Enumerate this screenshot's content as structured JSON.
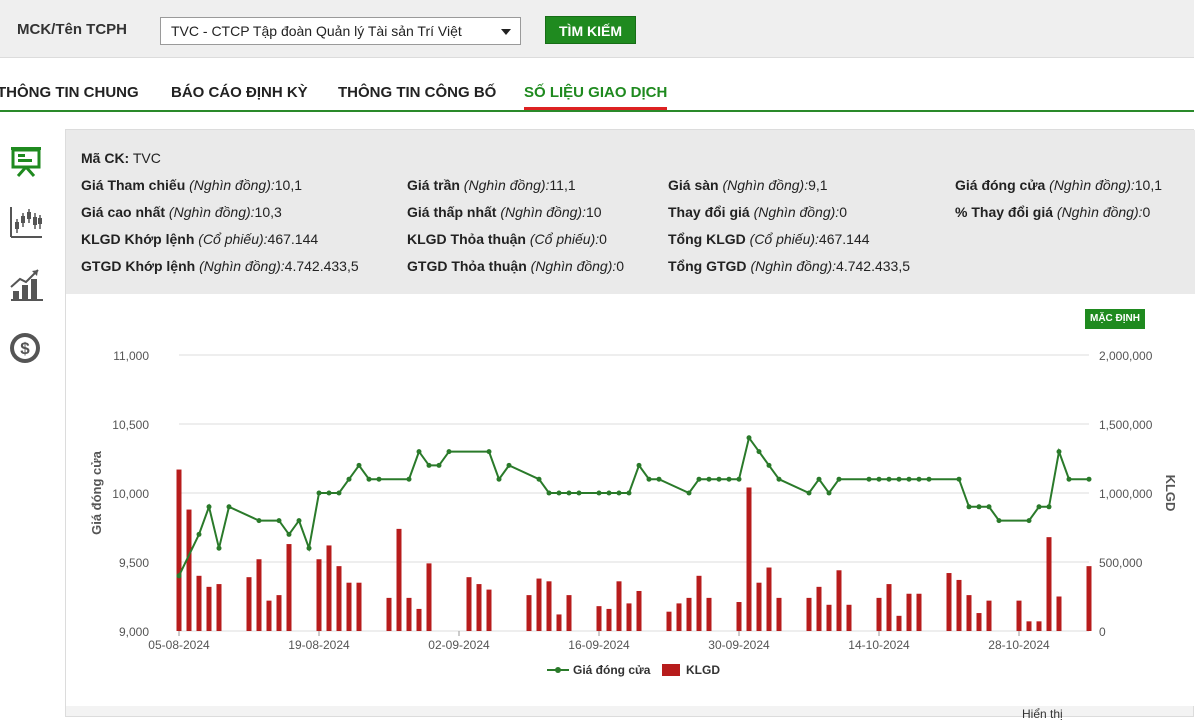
{
  "search": {
    "label": "MCK/Tên TCPH",
    "selected": "TVC - CTCP Tập đoàn Quản lý Tài sản Trí Việt",
    "button": "TÌM KIẾM"
  },
  "tabs": [
    {
      "label": "THÔNG TIN CHUNG",
      "active": false
    },
    {
      "label": "BÁO CÁO ĐỊNH KỲ",
      "active": false
    },
    {
      "label": "THÔNG TIN CÔNG BỐ",
      "active": false
    },
    {
      "label": "SỐ LIỆU GIAO DỊCH",
      "active": true
    }
  ],
  "sidebar": {
    "icons": [
      "presentation-board-icon",
      "candlestick-chart-icon",
      "growth-chart-icon",
      "dollar-coin-icon"
    ]
  },
  "info": {
    "code_label": "Mã CK:",
    "code_value": "TVC",
    "cols": [
      [
        {
          "label": "Giá Tham chiếu",
          "unit": "(Nghìn đồng):",
          "value": "10,1"
        },
        {
          "label": "Giá cao nhất",
          "unit": "(Nghìn đồng):",
          "value": "10,3"
        },
        {
          "label": "KLGD Khớp lệnh",
          "unit": "(Cổ phiếu):",
          "value": "467.144"
        },
        {
          "label": "GTGD Khớp lệnh",
          "unit": "(Nghìn đồng):",
          "value": "4.742.433,5"
        }
      ],
      [
        {
          "label": "Giá trần",
          "unit": "(Nghìn đồng):",
          "value": "11,1"
        },
        {
          "label": "Giá thấp nhất",
          "unit": "(Nghìn đồng):",
          "value": "10"
        },
        {
          "label": "KLGD Thỏa thuận",
          "unit": "(Cổ phiếu):",
          "value": "0"
        },
        {
          "label": "GTGD Thỏa thuận",
          "unit": "(Nghìn đồng):",
          "value": "0"
        }
      ],
      [
        {
          "label": "Giá sàn",
          "unit": "(Nghìn đồng):",
          "value": "9,1"
        },
        {
          "label": "Thay đổi giá",
          "unit": "(Nghìn đồng):",
          "value": "0"
        },
        {
          "label": "Tổng KLGD",
          "unit": "(Cổ phiếu):",
          "value": "467.144"
        },
        {
          "label": "Tổng GTGD",
          "unit": "(Nghìn đồng):",
          "value": "4.742.433,5"
        }
      ],
      [
        {
          "label": "Giá đóng cửa",
          "unit": "(Nghìn đồng):",
          "value": "10,1"
        },
        {
          "label": "% Thay đổi giá",
          "unit": "(Nghìn đồng):",
          "value": "0"
        }
      ]
    ]
  },
  "chart_controls": {
    "default_label": "MẶC ĐỊNH"
  },
  "footer": {
    "text": "Hiển thị"
  },
  "colors": {
    "accent": "#1f8a1f",
    "line": "#2a7a2a",
    "bar": "#b71c1c",
    "active_underline": "#dd2222"
  },
  "chart_data": {
    "type": "bar+line",
    "ylabel_left": "Giá đóng cửa",
    "ylabel_right": "KLGD",
    "ylim_left": [
      9000,
      11000
    ],
    "ylim_right": [
      0,
      2000000
    ],
    "yticks_left": [
      "9,000",
      "9,500",
      "10,000",
      "10,500",
      "11,000"
    ],
    "yticks_right": [
      "0",
      "500,000",
      "1,000,000",
      "1,500,000",
      "2,000,000"
    ],
    "xtick_labels": [
      "05-08-2024",
      "19-08-2024",
      "02-09-2024",
      "16-09-2024",
      "30-09-2024",
      "14-10-2024",
      "28-10-2024"
    ],
    "legend": [
      "Giá đóng cửa",
      "KLGD"
    ],
    "legend_position": "bottom",
    "x_start": "2024-08-05",
    "x_end": "2024-11-04",
    "series": [
      {
        "name": "Giá đóng cửa",
        "points": [
          [
            "2024-08-05",
            9400
          ],
          [
            "2024-08-07",
            9700
          ],
          [
            "2024-08-08",
            9900
          ],
          [
            "2024-08-09",
            9600
          ],
          [
            "2024-08-10",
            9900
          ],
          [
            "2024-08-13",
            9800
          ],
          [
            "2024-08-15",
            9800
          ],
          [
            "2024-08-16",
            9700
          ],
          [
            "2024-08-17",
            9800
          ],
          [
            "2024-08-18",
            9600
          ],
          [
            "2024-08-19",
            10000
          ],
          [
            "2024-08-20",
            10000
          ],
          [
            "2024-08-21",
            10000
          ],
          [
            "2024-08-22",
            10100
          ],
          [
            "2024-08-23",
            10200
          ],
          [
            "2024-08-24",
            10100
          ],
          [
            "2024-08-25",
            10100
          ],
          [
            "2024-08-28",
            10100
          ],
          [
            "2024-08-29",
            10300
          ],
          [
            "2024-08-30",
            10200
          ],
          [
            "2024-08-31",
            10200
          ],
          [
            "2024-09-01",
            10300
          ],
          [
            "2024-09-05",
            10300
          ],
          [
            "2024-09-06",
            10100
          ],
          [
            "2024-09-07",
            10200
          ],
          [
            "2024-09-10",
            10100
          ],
          [
            "2024-09-11",
            10000
          ],
          [
            "2024-09-12",
            10000
          ],
          [
            "2024-09-13",
            10000
          ],
          [
            "2024-09-14",
            10000
          ],
          [
            "2024-09-16",
            10000
          ],
          [
            "2024-09-17",
            10000
          ],
          [
            "2024-09-18",
            10000
          ],
          [
            "2024-09-19",
            10000
          ],
          [
            "2024-09-20",
            10200
          ],
          [
            "2024-09-21",
            10100
          ],
          [
            "2024-09-22",
            10100
          ],
          [
            "2024-09-25",
            10000
          ],
          [
            "2024-09-26",
            10100
          ],
          [
            "2024-09-27",
            10100
          ],
          [
            "2024-09-28",
            10100
          ],
          [
            "2024-09-29",
            10100
          ],
          [
            "2024-09-30",
            10100
          ],
          [
            "2024-10-01",
            10400
          ],
          [
            "2024-10-02",
            10300
          ],
          [
            "2024-10-03",
            10200
          ],
          [
            "2024-10-04",
            10100
          ],
          [
            "2024-10-07",
            10000
          ],
          [
            "2024-10-08",
            10100
          ],
          [
            "2024-10-09",
            10000
          ],
          [
            "2024-10-10",
            10100
          ],
          [
            "2024-10-13",
            10100
          ],
          [
            "2024-10-14",
            10100
          ],
          [
            "2024-10-15",
            10100
          ],
          [
            "2024-10-16",
            10100
          ],
          [
            "2024-10-17",
            10100
          ],
          [
            "2024-10-18",
            10100
          ],
          [
            "2024-10-19",
            10100
          ],
          [
            "2024-10-22",
            10100
          ],
          [
            "2024-10-23",
            9900
          ],
          [
            "2024-10-24",
            9900
          ],
          [
            "2024-10-25",
            9900
          ],
          [
            "2024-10-26",
            9800
          ],
          [
            "2024-10-29",
            9800
          ],
          [
            "2024-10-30",
            9900
          ],
          [
            "2024-10-31",
            9900
          ],
          [
            "2024-11-01",
            10300
          ],
          [
            "2024-11-02",
            10100
          ],
          [
            "2024-11-04",
            10100
          ]
        ]
      },
      {
        "name": "KLGD",
        "points": [
          [
            "2024-08-05",
            1170000
          ],
          [
            "2024-08-06",
            880000
          ],
          [
            "2024-08-07",
            400000
          ],
          [
            "2024-08-08",
            320000
          ],
          [
            "2024-08-09",
            340000
          ],
          [
            "2024-08-12",
            390000
          ],
          [
            "2024-08-13",
            520000
          ],
          [
            "2024-08-14",
            220000
          ],
          [
            "2024-08-15",
            260000
          ],
          [
            "2024-08-16",
            630000
          ],
          [
            "2024-08-19",
            520000
          ],
          [
            "2024-08-20",
            620000
          ],
          [
            "2024-08-21",
            470000
          ],
          [
            "2024-08-22",
            350000
          ],
          [
            "2024-08-23",
            350000
          ],
          [
            "2024-08-26",
            240000
          ],
          [
            "2024-08-27",
            740000
          ],
          [
            "2024-08-28",
            240000
          ],
          [
            "2024-08-29",
            160000
          ],
          [
            "2024-08-30",
            490000
          ],
          [
            "2024-09-03",
            390000
          ],
          [
            "2024-09-04",
            340000
          ],
          [
            "2024-09-05",
            300000
          ],
          [
            "2024-09-09",
            260000
          ],
          [
            "2024-09-10",
            380000
          ],
          [
            "2024-09-11",
            360000
          ],
          [
            "2024-09-12",
            120000
          ],
          [
            "2024-09-13",
            260000
          ],
          [
            "2024-09-16",
            180000
          ],
          [
            "2024-09-17",
            160000
          ],
          [
            "2024-09-18",
            360000
          ],
          [
            "2024-09-19",
            200000
          ],
          [
            "2024-09-20",
            290000
          ],
          [
            "2024-09-23",
            140000
          ],
          [
            "2024-09-24",
            200000
          ],
          [
            "2024-09-25",
            240000
          ],
          [
            "2024-09-26",
            400000
          ],
          [
            "2024-09-27",
            240000
          ],
          [
            "2024-09-30",
            210000
          ],
          [
            "2024-10-01",
            1040000
          ],
          [
            "2024-10-02",
            350000
          ],
          [
            "2024-10-03",
            460000
          ],
          [
            "2024-10-04",
            240000
          ],
          [
            "2024-10-07",
            240000
          ],
          [
            "2024-10-08",
            320000
          ],
          [
            "2024-10-09",
            190000
          ],
          [
            "2024-10-10",
            440000
          ],
          [
            "2024-10-11",
            190000
          ],
          [
            "2024-10-14",
            240000
          ],
          [
            "2024-10-15",
            340000
          ],
          [
            "2024-10-16",
            110000
          ],
          [
            "2024-10-17",
            270000
          ],
          [
            "2024-10-18",
            270000
          ],
          [
            "2024-10-21",
            420000
          ],
          [
            "2024-10-22",
            370000
          ],
          [
            "2024-10-23",
            260000
          ],
          [
            "2024-10-24",
            130000
          ],
          [
            "2024-10-25",
            220000
          ],
          [
            "2024-10-28",
            220000
          ],
          [
            "2024-10-29",
            70000
          ],
          [
            "2024-10-30",
            70000
          ],
          [
            "2024-10-31",
            680000
          ],
          [
            "2024-11-01",
            250000
          ],
          [
            "2024-11-04",
            470000
          ]
        ]
      }
    ]
  }
}
